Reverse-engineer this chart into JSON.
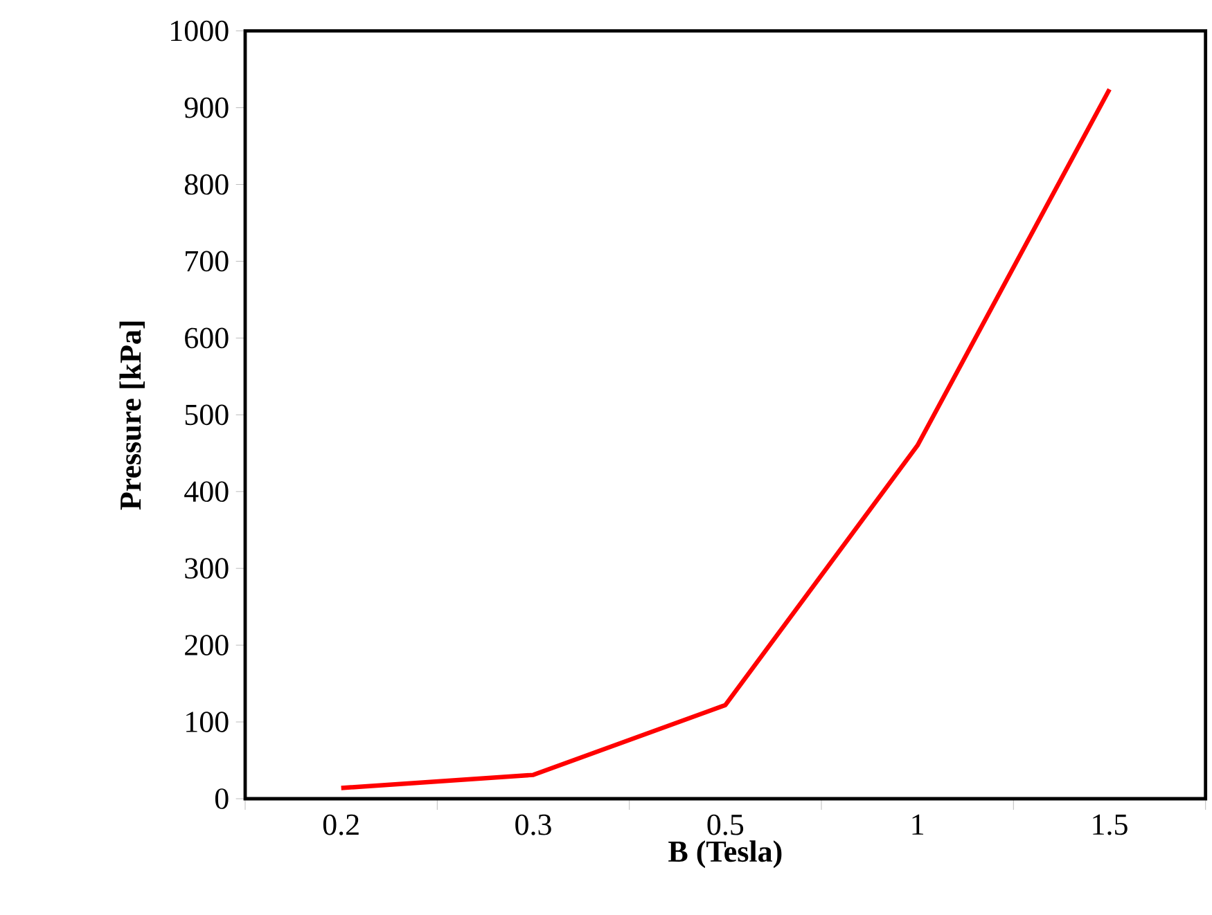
{
  "chart_data": {
    "type": "line",
    "xlabel": "B (Tesla)",
    "ylabel": "Pressure  [kPa]",
    "categories": [
      "0.2",
      "0.3",
      "0.5",
      "1",
      "1.5"
    ],
    "series": [
      {
        "color": "#ff0000",
        "values": [
          14,
          31,
          122,
          460,
          924
        ]
      }
    ],
    "ylim": [
      0,
      1000
    ],
    "yticks": [
      0,
      100,
      200,
      300,
      400,
      500,
      600,
      700,
      800,
      900,
      1000
    ],
    "grid": false,
    "marker": "none",
    "line_style": "solid"
  }
}
